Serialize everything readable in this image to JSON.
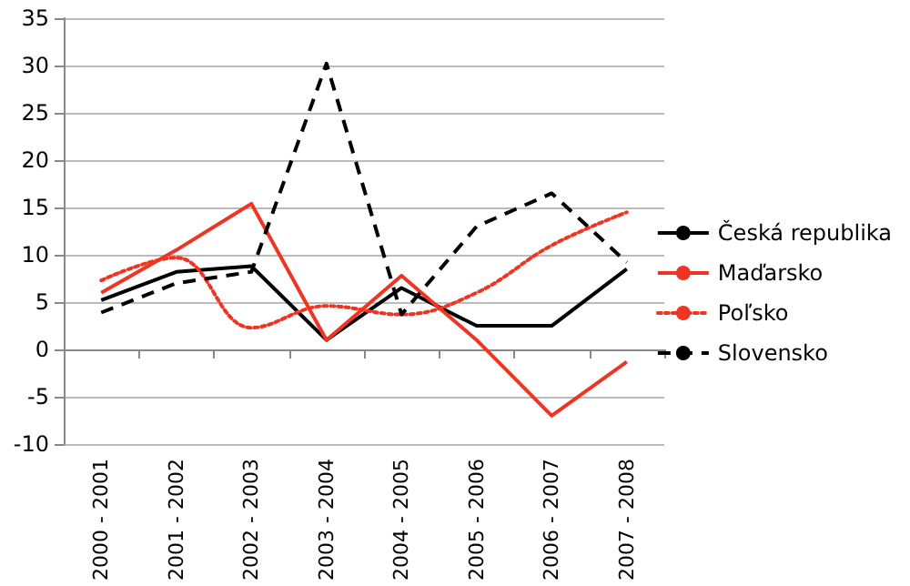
{
  "chart_data": {
    "type": "line",
    "categories": [
      "2000 - 2001",
      "2001 - 2002",
      "2002 - 2003",
      "2003 - 2004",
      "2004 - 2005",
      "2005 - 2006",
      "2006 - 2007",
      "2007 - 2008"
    ],
    "series": [
      {
        "name": "Česká republika",
        "color": "#000000",
        "line_style": "solid",
        "values": [
          5.2,
          8.2,
          8.8,
          1,
          6.5,
          2.5,
          2.5,
          8.5
        ]
      },
      {
        "name": "Maďarsko",
        "color": "#ee3524",
        "line_style": "solid",
        "values": [
          6,
          10.5,
          15.4,
          1,
          7.8,
          1,
          -7,
          -1.3
        ]
      },
      {
        "name": "Poľsko",
        "color": "#ee3524",
        "line_style": "dotted",
        "values": [
          7.3,
          9.7,
          2.3,
          4.6,
          3.7,
          6,
          11,
          14.5
        ]
      },
      {
        "name": "Slovensko",
        "color": "#000000",
        "line_style": "dashed",
        "values": [
          3.9,
          7,
          8.2,
          30.2,
          3.7,
          13,
          16.5,
          9.2
        ]
      }
    ],
    "ylim": [
      -10,
      35
    ],
    "yticks": [
      -10,
      -5,
      0,
      5,
      10,
      15,
      20,
      25,
      30,
      35
    ],
    "grid": "y",
    "legend": "right",
    "marker": "none"
  }
}
